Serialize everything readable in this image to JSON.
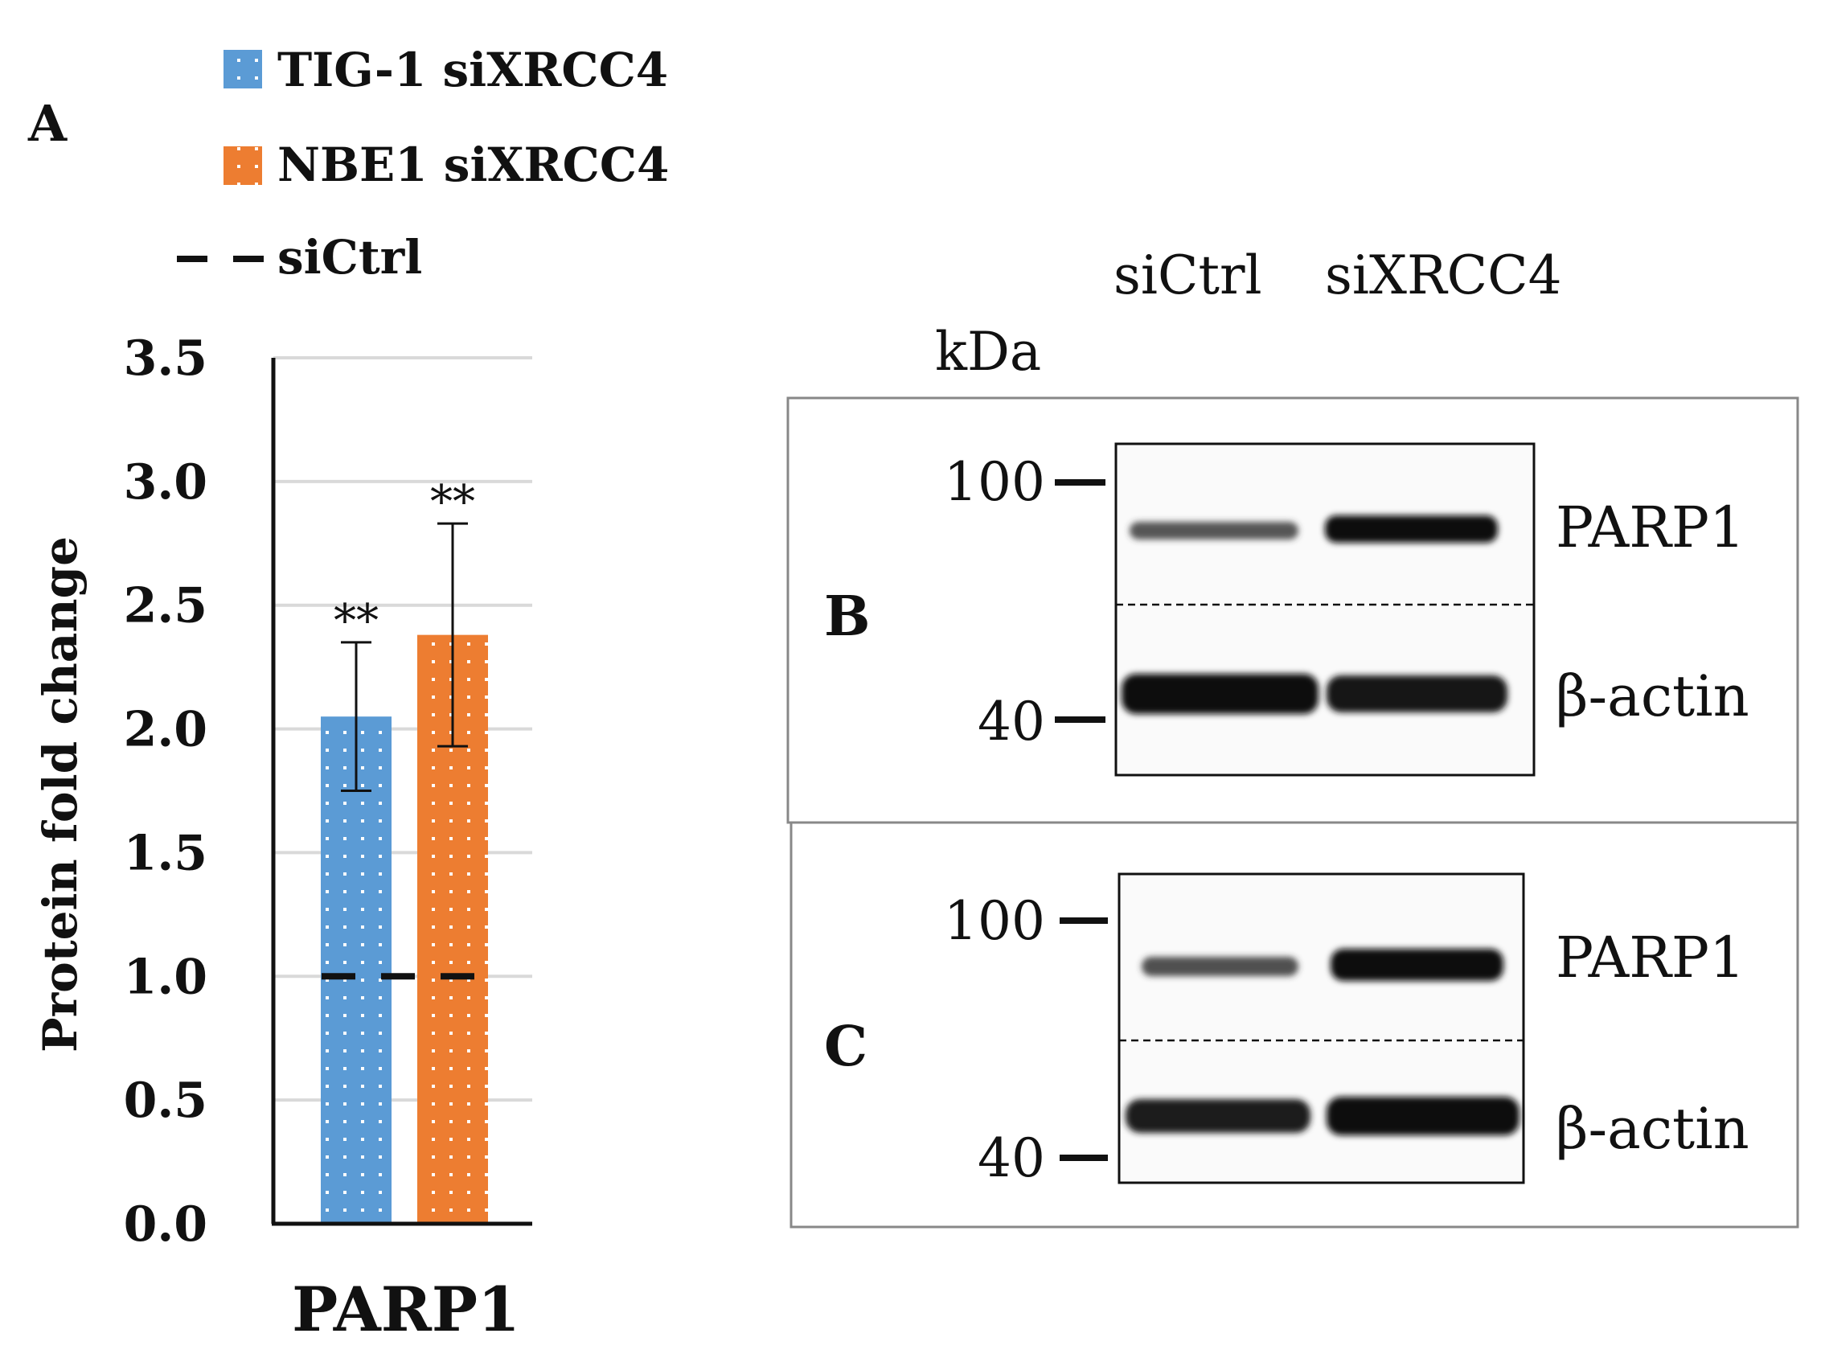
{
  "panel_a": {
    "letter": "A",
    "legend": [
      {
        "label": "TIG-1 siXRCC4",
        "color": "#5B9BD5"
      },
      {
        "label": "NBE1 siXRCC4",
        "color": "#ED7D31"
      },
      {
        "label": "siCtrl",
        "color": "#000000"
      }
    ]
  },
  "chart_data": {
    "type": "bar",
    "categories": [
      "PARP1"
    ],
    "series": [
      {
        "name": "TIG-1 siXRCC4",
        "values": [
          2.05
        ],
        "error": [
          0.3
        ],
        "significance": "**",
        "color": "#5B9BD5"
      },
      {
        "name": "NBE1 siXRCC4",
        "values": [
          2.38
        ],
        "error": [
          0.45
        ],
        "significance": "**",
        "color": "#ED7D31"
      }
    ],
    "reference_line": {
      "name": "siCtrl",
      "value": 1.0,
      "style": "dashed"
    },
    "ylabel": "Protein fold change",
    "xlabel": "PARP1",
    "ylim": [
      0,
      3.5
    ],
    "yticks": [
      "0.0",
      "0.5",
      "1.0",
      "1.5",
      "2.0",
      "2.5",
      "3.0",
      "3.5"
    ],
    "grid": true
  },
  "blots": {
    "lane_labels": [
      "siCtrl",
      "siXRCC4"
    ],
    "kda_label": "kDa",
    "panels": [
      {
        "letter": "B",
        "marker_top": "100",
        "marker_bottom": "40",
        "band_top": "PARP1",
        "band_bottom": "β-actin"
      },
      {
        "letter": "C",
        "marker_top": "100",
        "marker_bottom": "40",
        "band_top": "PARP1",
        "band_bottom": "β-actin"
      }
    ]
  }
}
